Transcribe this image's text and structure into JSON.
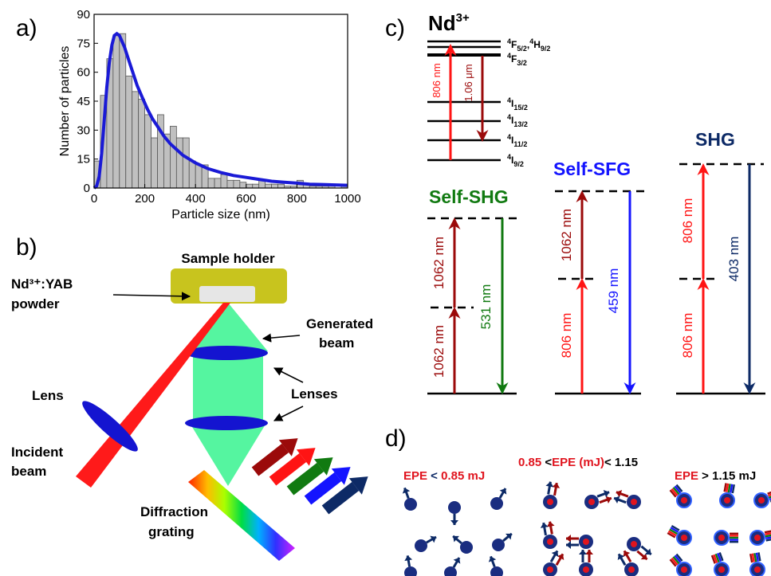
{
  "panels": {
    "a": "a)",
    "b": "b)",
    "c": "c)",
    "d": "d)"
  },
  "histogram": {
    "chart_data": {
      "type": "bar",
      "xlabel": "Particle size (nm)",
      "ylabel": "Number of particles",
      "xlim": [
        0,
        1000
      ],
      "ylim": [
        0,
        90
      ],
      "x_ticks": [
        "0",
        "200",
        "400",
        "600",
        "800",
        "1000"
      ],
      "y_ticks": [
        "0",
        "15",
        "30",
        "45",
        "60",
        "75",
        "90"
      ],
      "bin_width": 25,
      "bin_starts": [
        0,
        25,
        50,
        75,
        100,
        125,
        150,
        175,
        200,
        225,
        250,
        275,
        300,
        325,
        350,
        375,
        400,
        425,
        450,
        475,
        500,
        525,
        550,
        575,
        600,
        625,
        650,
        675,
        700,
        725,
        750,
        775,
        800,
        825,
        850,
        875,
        900,
        925,
        950,
        975
      ],
      "values": [
        14,
        48,
        67,
        79,
        80,
        58,
        50,
        46,
        38,
        26,
        38,
        28,
        32,
        26,
        26,
        14,
        12,
        12,
        5,
        5,
        7,
        4,
        4,
        3,
        2,
        2,
        4,
        2,
        2,
        2,
        1,
        1,
        4,
        2,
        1,
        1,
        1,
        2,
        0,
        1
      ],
      "fit": {
        "x": [
          0,
          10,
          20,
          30,
          40,
          50,
          60,
          70,
          80,
          90,
          100,
          110,
          120,
          130,
          140,
          150,
          170,
          190,
          210,
          230,
          250,
          275,
          300,
          325,
          350,
          375,
          400,
          450,
          500,
          550,
          600,
          650,
          700,
          750,
          800,
          850,
          900,
          950,
          1000
        ],
        "y": [
          0,
          1,
          6,
          18,
          35,
          52,
          65,
          74,
          79,
          80,
          79,
          76,
          73,
          69,
          65,
          61,
          53,
          47,
          41,
          36,
          32,
          27,
          23,
          20,
          17,
          15,
          13,
          10,
          8,
          6.5,
          5.5,
          4.5,
          3.5,
          3,
          2.5,
          2,
          1.8,
          1.6,
          1.4
        ]
      },
      "bar_color": "#c0c0c0",
      "fit_color": "#1a1ad6"
    }
  },
  "setup": {
    "sample_holder": "Sample holder",
    "sample_line1": "Nd³⁺:YAB",
    "sample_line2": "powder",
    "generated_line1": "Generated",
    "generated_line2": "beam",
    "lenses": "Lenses",
    "lens": "Lens",
    "incident_line1": "Incident",
    "incident_line2": "beam",
    "grating_line1": "Diffraction",
    "grating_line2": "grating",
    "colors": {
      "holder": "#c8c41e",
      "beam": "#55f5a0",
      "lens": "#1414d0",
      "laser": "#ff1a1a"
    }
  },
  "levels": {
    "ion": "Nd",
    "ion_charge": "3+",
    "pump": "806 nm",
    "emission": "1.06 μm",
    "states": [
      {
        "sup": "4",
        "main": "F",
        "sub": "5/2",
        "sep": ",",
        "sup2": "4",
        "main2": "H",
        "sub2": "9/2"
      },
      {
        "sup": "4",
        "main": "F",
        "sub": "3/2"
      },
      {
        "sup": "4",
        "main": "I",
        "sub": "15/2"
      },
      {
        "sup": "4",
        "main": "I",
        "sub": "13/2"
      },
      {
        "sup": "4",
        "main": "I",
        "sub": "11/2"
      },
      {
        "sup": "4",
        "main": "I",
        "sub": "9/2"
      }
    ]
  },
  "processes": {
    "shg_self": {
      "title": "Self-SHG",
      "lower": "1062 nm",
      "upper": "1062 nm",
      "output": "531 nm"
    },
    "sfg_self": {
      "title": "Self-SFG",
      "lower": "806 nm",
      "upper": "1062 nm",
      "output": "459 nm"
    },
    "shg": {
      "title": "SHG",
      "lower": "806 nm",
      "upper": "806 nm",
      "output": "403 nm"
    },
    "colors": {
      "dark_red": "#9b0a0a",
      "red": "#ff1414",
      "green": "#117a11",
      "blue": "#1414ff",
      "navy": "#0d2a66"
    }
  },
  "epe": {
    "low": {
      "var": "EPE",
      "op": " < ",
      "val": "0.85 mJ"
    },
    "mid": {
      "lo": "0.85",
      "op1": " <",
      "var": "EPE (mJ)",
      "op2": "< 1.15"
    },
    "high": {
      "var": "EPE",
      "op": " > ",
      "val": "1.15 mJ"
    },
    "colors": {
      "label": "#e0141e",
      "dark": "#0d2a66",
      "particle": "#1a2d80",
      "core": "#e0141e",
      "ring": "#3060ff"
    }
  }
}
